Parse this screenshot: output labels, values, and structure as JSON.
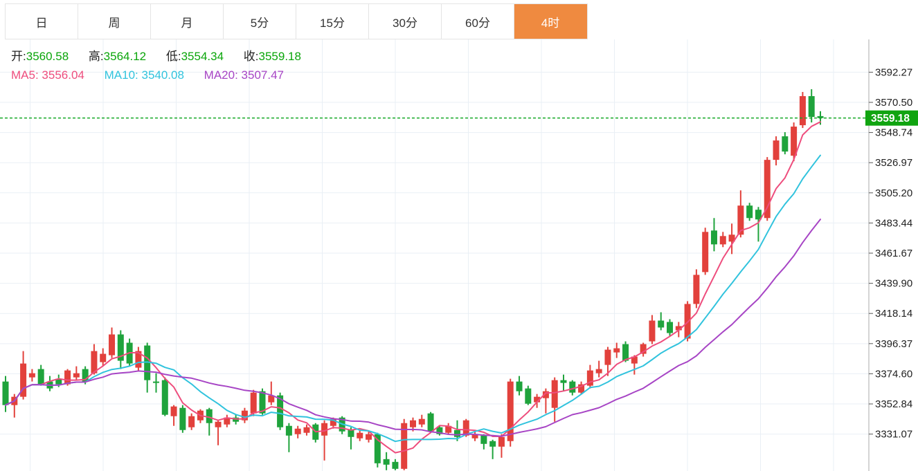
{
  "toolbar": {
    "tabs": [
      {
        "name": "tab-day",
        "label": "日",
        "active": false
      },
      {
        "name": "tab-week",
        "label": "周",
        "active": false
      },
      {
        "name": "tab-month",
        "label": "月",
        "active": false
      },
      {
        "name": "tab-5min",
        "label": "5分",
        "active": false
      },
      {
        "name": "tab-15min",
        "label": "15分",
        "active": false
      },
      {
        "name": "tab-30min",
        "label": "30分",
        "active": false
      },
      {
        "name": "tab-60min",
        "label": "60分",
        "active": false
      },
      {
        "name": "tab-4hour",
        "label": "4时",
        "active": true
      }
    ],
    "active_bg": "#ef8a40"
  },
  "overlay": {
    "open_label": "开:",
    "open": "3560.58",
    "high_label": "高:",
    "high": "3564.12",
    "low_label": "低:",
    "low": "3554.34",
    "close_label": "收:",
    "close": "3559.18",
    "ma5_label": "MA5:",
    "ma5": "3556.04",
    "ma10_label": "MA10:",
    "ma10": "3540.08",
    "ma20_label": "MA20:",
    "ma20": "3507.47"
  },
  "colors": {
    "up": "#e2413c",
    "down": "#1fa33c",
    "ohlc_value": "#0aa50a",
    "ma5": "#ee4d7d",
    "ma10": "#31c3dd",
    "ma20": "#a745c5",
    "grid": "#e9eff5",
    "axis_line": "#aaaaaa",
    "tick_text": "#222222",
    "dotted_line": "#13a725",
    "badge_bg": "#10a410",
    "badge_text": "#ffffff"
  },
  "last_price": {
    "value": "3559.18",
    "price": 3559.18
  },
  "chart_data": {
    "type": "candlestick",
    "title": "",
    "legend": [
      "MA5",
      "MA10",
      "MA20"
    ],
    "ma_periods": [
      5,
      10,
      20
    ],
    "ma_display_values": {
      "MA5": 3556.04,
      "MA10": 3540.08,
      "MA20": 3507.47
    },
    "last_candle_ohlc": {
      "open": 3560.58,
      "high": 3564.12,
      "low": 3554.34,
      "close": 3559.18
    },
    "y_axis": {
      "side": "right",
      "ticks": [
        3592.27,
        3570.5,
        3548.74,
        3526.97,
        3505.2,
        3483.44,
        3461.67,
        3439.9,
        3418.14,
        3396.37,
        3374.6,
        3352.84,
        3331.07
      ]
    },
    "grid": true,
    "up_means": "price rose (red, CN convention)",
    "down_means": "price fell (green, CN convention)",
    "candles_ohlc": [
      [
        3369,
        3373,
        3347,
        3352
      ],
      [
        3352,
        3360,
        3343,
        3358
      ],
      [
        3358,
        3391,
        3356,
        3382
      ],
      [
        3372,
        3378,
        3369,
        3375
      ],
      [
        3378,
        3381,
        3366,
        3367
      ],
      [
        3369,
        3373,
        3362,
        3364
      ],
      [
        3371,
        3374,
        3365,
        3367
      ],
      [
        3367,
        3378,
        3366,
        3377
      ],
      [
        3372,
        3380,
        3370,
        3375
      ],
      [
        3378,
        3380,
        3367,
        3369
      ],
      [
        3375,
        3396,
        3374,
        3391
      ],
      [
        3383,
        3393,
        3380,
        3389
      ],
      [
        3388,
        3408,
        3386,
        3403
      ],
      [
        3403,
        3406,
        3378,
        3384
      ],
      [
        3397,
        3400,
        3380,
        3382
      ],
      [
        3379,
        3394,
        3377,
        3391
      ],
      [
        3395,
        3397,
        3361,
        3370
      ],
      [
        3369,
        3375,
        3361,
        3368
      ],
      [
        3370,
        3372,
        3344,
        3345
      ],
      [
        3344,
        3352,
        3337,
        3351
      ],
      [
        3350,
        3352,
        3332,
        3334
      ],
      [
        3336,
        3346,
        3334,
        3344
      ],
      [
        3341,
        3349,
        3339,
        3348
      ],
      [
        3349,
        3350,
        3330,
        3339
      ],
      [
        3336,
        3341,
        3323,
        3340
      ],
      [
        3338,
        3345,
        3336,
        3343
      ],
      [
        3343,
        3345,
        3338,
        3340
      ],
      [
        3341,
        3350,
        3339,
        3348
      ],
      [
        3346,
        3363,
        3344,
        3361
      ],
      [
        3362,
        3364,
        3345,
        3346
      ],
      [
        3354,
        3369,
        3352,
        3359
      ],
      [
        3359,
        3361,
        3334,
        3336
      ],
      [
        3337,
        3339,
        3318,
        3330
      ],
      [
        3331,
        3337,
        3328,
        3335
      ],
      [
        3332,
        3338,
        3330,
        3336
      ],
      [
        3338,
        3339,
        3325,
        3327
      ],
      [
        3330,
        3341,
        3312,
        3339
      ],
      [
        3337,
        3343,
        3335,
        3342
      ],
      [
        3343,
        3344,
        3331,
        3333
      ],
      [
        3334,
        3336,
        3320,
        3329
      ],
      [
        3328,
        3334,
        3326,
        3332
      ],
      [
        3327,
        3333,
        3325,
        3331
      ],
      [
        3331,
        3332,
        3307,
        3310
      ],
      [
        3313,
        3318,
        3305,
        3309
      ],
      [
        3311,
        3313,
        3305,
        3306
      ],
      [
        3306,
        3342,
        3305,
        3339
      ],
      [
        3336,
        3343,
        3333,
        3341
      ],
      [
        3338,
        3345,
        3336,
        3342
      ],
      [
        3346,
        3347,
        3332,
        3333
      ],
      [
        3336,
        3337,
        3330,
        3331
      ],
      [
        3332,
        3339,
        3331,
        3337
      ],
      [
        3334,
        3341,
        3326,
        3329
      ],
      [
        3330,
        3342,
        3329,
        3341
      ],
      [
        3328,
        3333,
        3326,
        3331
      ],
      [
        3330,
        3331,
        3320,
        3324
      ],
      [
        3326,
        3327,
        3313,
        3322
      ],
      [
        3322,
        3331,
        3314,
        3329
      ],
      [
        3326,
        3371,
        3322,
        3369
      ],
      [
        3369,
        3373,
        3359,
        3362
      ],
      [
        3364,
        3366,
        3352,
        3353
      ],
      [
        3354,
        3360,
        3350,
        3358
      ],
      [
        3357,
        3364,
        3346,
        3362
      ],
      [
        3350,
        3372,
        3340,
        3370
      ],
      [
        3370,
        3374,
        3362,
        3368
      ],
      [
        3369,
        3370,
        3359,
        3361
      ],
      [
        3361,
        3369,
        3360,
        3367
      ],
      [
        3366,
        3381,
        3364,
        3377
      ],
      [
        3375,
        3384,
        3372,
        3378
      ],
      [
        3381,
        3394,
        3373,
        3392
      ],
      [
        3390,
        3397,
        3386,
        3393
      ],
      [
        3396,
        3398,
        3383,
        3384
      ],
      [
        3382,
        3388,
        3374,
        3387
      ],
      [
        3389,
        3397,
        3387,
        3396
      ],
      [
        3398,
        3417,
        3396,
        3413
      ],
      [
        3413,
        3419,
        3406,
        3408
      ],
      [
        3412,
        3414,
        3402,
        3404
      ],
      [
        3406,
        3412,
        3401,
        3409
      ],
      [
        3400,
        3427,
        3398,
        3425
      ],
      [
        3425,
        3450,
        3422,
        3446
      ],
      [
        3448,
        3480,
        3446,
        3477
      ],
      [
        3478,
        3487,
        3463,
        3468
      ],
      [
        3468,
        3477,
        3466,
        3474
      ],
      [
        3470,
        3483,
        3461,
        3475
      ],
      [
        3475,
        3507,
        3473,
        3496
      ],
      [
        3496,
        3498,
        3485,
        3487
      ],
      [
        3493,
        3495,
        3470,
        3486
      ],
      [
        3487,
        3531,
        3485,
        3529
      ],
      [
        3529,
        3546,
        3525,
        3543
      ],
      [
        3546,
        3549,
        3533,
        3535
      ],
      [
        3532,
        3556,
        3528,
        3553
      ],
      [
        3554,
        3578,
        3552,
        3575
      ],
      [
        3575,
        3580,
        3556,
        3560
      ],
      [
        3560.58,
        3564.12,
        3554.34,
        3559.18
      ]
    ]
  }
}
